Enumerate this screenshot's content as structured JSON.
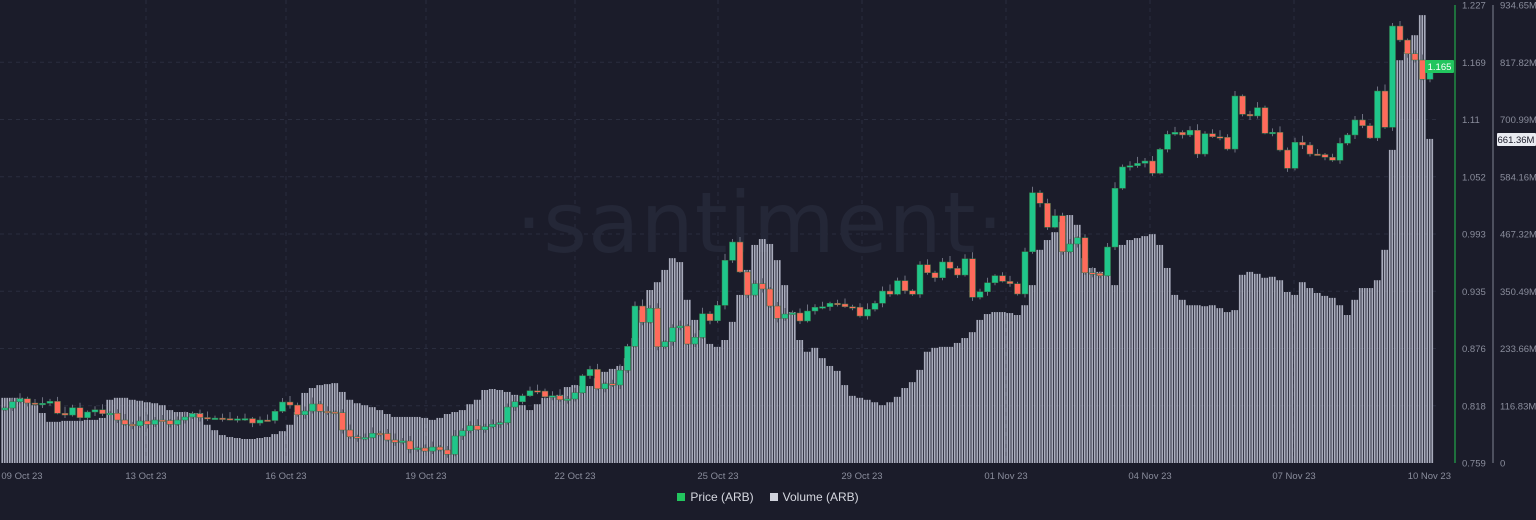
{
  "watermark": "·santiment·",
  "legend": [
    {
      "label": "Price (ARB)",
      "color": "#22c55e"
    },
    {
      "label": "Volume (ARB)",
      "color": "#d0d2dc"
    }
  ],
  "colors": {
    "background": "#1b1c2a",
    "up": "#1fc68a",
    "down": "#ff6a5b",
    "volume": "#a9acbc",
    "price_axis": "#22a84a",
    "volume_axis": "#8a8d9c"
  },
  "chart_data": {
    "type": "candlestick+bar",
    "interval": "4h",
    "x_tick_labels": [
      "09 Oct 23",
      "13 Oct 23",
      "16 Oct 23",
      "19 Oct 23",
      "22 Oct 23",
      "25 Oct 23",
      "29 Oct 23",
      "01 Nov 23",
      "04 Nov 23",
      "07 Nov 23",
      "10 Nov 23"
    ],
    "price_axis": {
      "ticks": [
        "1.227",
        "1.169",
        "1.11",
        "1.052",
        "0.993",
        "0.935",
        "0.876",
        "0.818",
        "0.759"
      ],
      "ylim": [
        0.759,
        1.227
      ],
      "current_label": "1.165"
    },
    "volume_axis": {
      "ticks": [
        "934.65M",
        "817.82M",
        "700.99M",
        "584.16M",
        "467.32M",
        "350.49M",
        "233.66M",
        "116.83M",
        "0"
      ],
      "ylim": [
        0,
        934.65
      ],
      "unit": "M",
      "current_label": "661.36M"
    },
    "series": [
      {
        "name": "Price (ARB)",
        "kind": "candles",
        "first_open": 0.8132,
        "close": [
          0.8152,
          0.8216,
          0.8247,
          0.8203,
          0.8193,
          0.82,
          0.822,
          0.8098,
          0.808,
          0.8155,
          0.8053,
          0.8111,
          0.8134,
          0.8094,
          0.8098,
          0.8029,
          0.7985,
          0.7971,
          0.8019,
          0.7985,
          0.8029,
          0.8024,
          0.7985,
          0.8029,
          0.806,
          0.8094,
          0.8055,
          0.8046,
          0.8049,
          0.8044,
          0.8039,
          0.8041,
          0.8044,
          0.7998,
          0.8029,
          0.8024,
          0.8118,
          0.8213,
          0.8182,
          0.8083,
          0.8121,
          0.8193,
          0.8118,
          0.8111,
          0.8104,
          0.7927,
          0.7858,
          0.7848,
          0.785,
          0.7893,
          0.7891,
          0.7825,
          0.7801,
          0.7815,
          0.773,
          0.7743,
          0.7712,
          0.7753,
          0.7723,
          0.7679,
          0.7866,
          0.792,
          0.7971,
          0.793,
          0.7961,
          0.7985,
          0.8002,
          0.8162,
          0.8216,
          0.8277,
          0.8329,
          0.8325,
          0.8267,
          0.8277,
          0.8237,
          0.8244,
          0.8308,
          0.8482,
          0.8547,
          0.8349,
          0.84,
          0.8387,
          0.8537,
          0.8782,
          0.9194,
          0.9028,
          0.9171,
          0.8778,
          0.8829,
          0.8972,
          0.899,
          0.8806,
          0.8874,
          0.9115,
          0.9044,
          0.9201,
          0.9661,
          0.9848,
          0.9542,
          0.9306,
          0.9422,
          0.9368,
          0.9194,
          0.9068,
          0.9112,
          0.9123,
          0.9041,
          0.9143,
          0.9181,
          0.9187,
          0.9222,
          0.9215,
          0.9187,
          0.9182,
          0.9092,
          0.916,
          0.9222,
          0.9347,
          0.9314,
          0.9453,
          0.935,
          0.9314,
          0.9616,
          0.9534,
          0.9483,
          0.9644,
          0.9579,
          0.9511,
          0.9677,
          0.9283,
          0.934,
          0.9432,
          0.9504,
          0.9446,
          0.9422,
          0.9317,
          0.9749,
          1.0352,
          1.0244,
          0.9998,
          1.0117,
          0.9749,
          0.9828,
          0.9892,
          0.9534,
          0.9528,
          0.9504,
          0.9797,
          1.0397,
          1.0615,
          1.0628,
          1.0652,
          1.0676,
          1.055,
          1.0795,
          1.0949,
          1.0969,
          1.0942,
          1.099,
          1.0747,
          1.0955,
          1.0924,
          1.0918,
          1.0798,
          1.134,
          1.1153,
          1.1136,
          1.1221,
          1.0959,
          1.0969,
          1.0788,
          1.0601,
          1.0867,
          1.0839,
          1.0747,
          1.0742,
          1.0714,
          1.0683,
          1.0857,
          1.0942,
          1.1095,
          1.1037,
          1.0911,
          1.1391,
          1.102,
          1.2055,
          1.1912,
          1.1772,
          1.1708,
          1.1511,
          1.165
        ]
      },
      {
        "name": "Volume (ARB)",
        "kind": "bar",
        "unit": "M",
        "values": [
          133,
          133,
          133,
          131,
          118,
          102,
          84,
          84,
          86,
          86,
          86,
          88,
          88,
          92,
          129,
          133,
          133,
          129,
          127,
          124,
          122,
          118,
          108,
          104,
          104,
          102,
          102,
          78,
          67,
          57,
          53,
          51,
          49,
          49,
          51,
          53,
          59,
          65,
          78,
          104,
          143,
          153,
          159,
          161,
          163,
          145,
          129,
          122,
          118,
          114,
          108,
          100,
          94,
          94,
          94,
          94,
          92,
          88,
          92,
          100,
          104,
          108,
          120,
          129,
          149,
          151,
          149,
          145,
          139,
          118,
          108,
          120,
          133,
          137,
          139,
          155,
          159,
          157,
          157,
          173,
          186,
          192,
          198,
          214,
          255,
          312,
          353,
          369,
          394,
          418,
          410,
          333,
          292,
          271,
          243,
          237,
          251,
          288,
          343,
          394,
          445,
          457,
          447,
          414,
          363,
          308,
          251,
          227,
          235,
          214,
          198,
          188,
          159,
          137,
          133,
          129,
          124,
          118,
          124,
          135,
          153,
          165,
          190,
          227,
          235,
          237,
          237,
          245,
          255,
          267,
          292,
          304,
          308,
          308,
          306,
          302,
          322,
          363,
          435,
          455,
          471,
          492,
          506,
          486,
          418,
          398,
          390,
          384,
          363,
          445,
          455,
          459,
          463,
          467,
          445,
          398,
          343,
          333,
          322,
          322,
          320,
          322,
          316,
          308,
          312,
          384,
          390,
          386,
          378,
          380,
          373,
          349,
          343,
          369,
          357,
          347,
          341,
          337,
          322,
          302,
          333,
          357,
          357,
          373,
          435,
          639,
          822,
          839,
          873,
          914,
          661.36
        ]
      }
    ],
    "grid": true,
    "legend_position": "bottom-center"
  }
}
